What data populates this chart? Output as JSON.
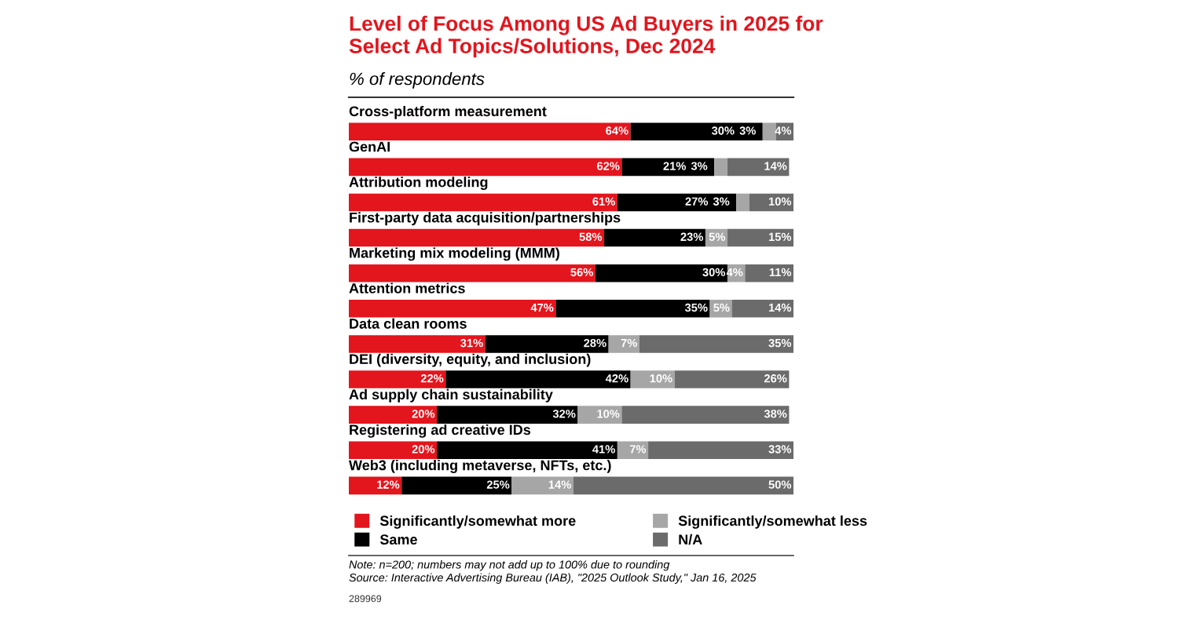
{
  "chart_data": {
    "type": "bar",
    "orientation": "horizontal",
    "stacked": true,
    "title": "Level of Focus Among US Ad Buyers in 2025 for\nSelect Ad Topics/Solutions, Dec 2024",
    "subtitle": "% of respondents",
    "categories": [
      "Cross-platform measurement",
      "GenAI",
      "Attribution modeling",
      "First-party data acquisition/partnerships",
      "Marketing mix modeling (MMM)",
      "Attention metrics",
      "Data clean rooms",
      "DEI (diversity, equity, and inclusion)",
      "Ad supply chain sustainability",
      "Registering ad creative IDs",
      "Web3 (including metaverse, NFTs, etc.)"
    ],
    "series": [
      {
        "name": "Significantly/somewhat more",
        "color": "#e3151d",
        "values": [
          64,
          62,
          61,
          58,
          56,
          47,
          31,
          22,
          20,
          20,
          12
        ],
        "value_labels": [
          "64%",
          "62%",
          "61%",
          "58%",
          "56%",
          "47%",
          "31%",
          "22%",
          "20%",
          "20%",
          "12%"
        ]
      },
      {
        "name": "Same",
        "color": "#000000",
        "values": [
          30,
          21,
          27,
          23,
          30,
          35,
          28,
          42,
          32,
          41,
          25
        ],
        "value_labels": [
          "30%",
          "21%",
          "27%",
          "23%",
          "30%",
          "35%",
          "28%",
          "42%",
          "32%",
          "41%",
          "25%"
        ]
      },
      {
        "name": "Significantly/somewhat less",
        "color": "#a6a6a6",
        "values": [
          3,
          3,
          3,
          5,
          4,
          5,
          7,
          10,
          10,
          7,
          14
        ],
        "value_labels": [
          "3%",
          "3%",
          "3%",
          "5%",
          "4%",
          "5%",
          "7%",
          "10%",
          "10%",
          "7%",
          "14%"
        ]
      },
      {
        "name": "N/A",
        "color": "#6b6b6b",
        "values": [
          4,
          14,
          10,
          15,
          11,
          14,
          35,
          26,
          38,
          33,
          50
        ],
        "value_labels": [
          "4%",
          "14%",
          "10%",
          "15%",
          "11%",
          "14%",
          "35%",
          "26%",
          "38%",
          "33%",
          "50%"
        ]
      }
    ],
    "legend": "bottom",
    "annotations": [
      "Note: n=200; numbers may not add up to 100% due to rounding\nSource: Interactive Advertising Bureau (IAB), \"2025 Outlook Study,\" Jan 16, 2025",
      "289969"
    ]
  }
}
